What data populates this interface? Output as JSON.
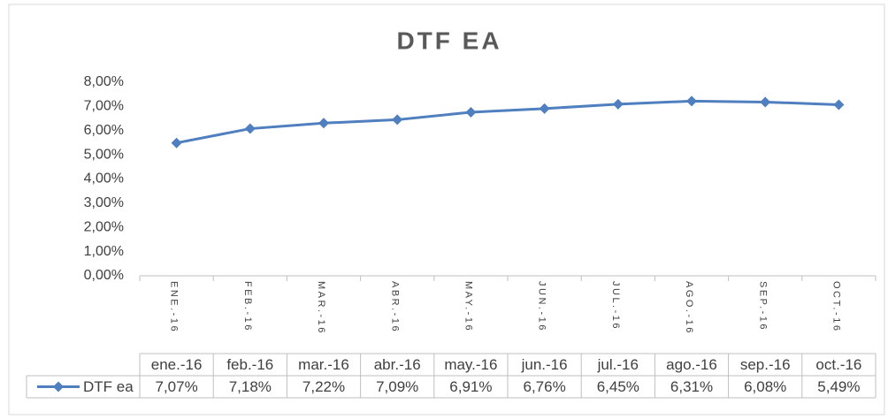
{
  "chart_data": {
    "type": "line",
    "title": "DTF EA",
    "axis_categories": [
      "ENE.-16",
      "FEB.-16",
      "MAR.-16",
      "ABR.-16",
      "MAY.-16",
      "JUN.-16",
      "JUL.-16",
      "AGO.-16",
      "SEP.-16",
      "OCT.-16"
    ],
    "x_reversed": true,
    "categories": [
      "ene.-16",
      "feb.-16",
      "mar.-16",
      "abr.-16",
      "may.-16",
      "jun.-16",
      "jul.-16",
      "ago.-16",
      "sep.-16",
      "oct.-16"
    ],
    "series": [
      {
        "name": "DTF ea",
        "color": "#4f7fbf",
        "values": [
          7.07,
          7.18,
          7.22,
          7.09,
          6.91,
          6.76,
          6.45,
          6.31,
          6.08,
          5.49
        ],
        "value_labels": [
          "7,07%",
          "7,18%",
          "7,22%",
          "7,09%",
          "6,91%",
          "6,76%",
          "6,45%",
          "6,31%",
          "6,08%",
          "5,49%"
        ]
      }
    ],
    "ylim": [
      0,
      8
    ],
    "yticks": [
      {
        "value": 0,
        "label": "0,00%"
      },
      {
        "value": 1,
        "label": "1,00%"
      },
      {
        "value": 2,
        "label": "2,00%"
      },
      {
        "value": 3,
        "label": "3,00%"
      },
      {
        "value": 4,
        "label": "4,00%"
      },
      {
        "value": 5,
        "label": "5,00%"
      },
      {
        "value": 6,
        "label": "6,00%"
      },
      {
        "value": 7,
        "label": "7,00%"
      },
      {
        "value": 8,
        "label": "8,00%"
      }
    ],
    "grid": false,
    "data_table": true
  }
}
